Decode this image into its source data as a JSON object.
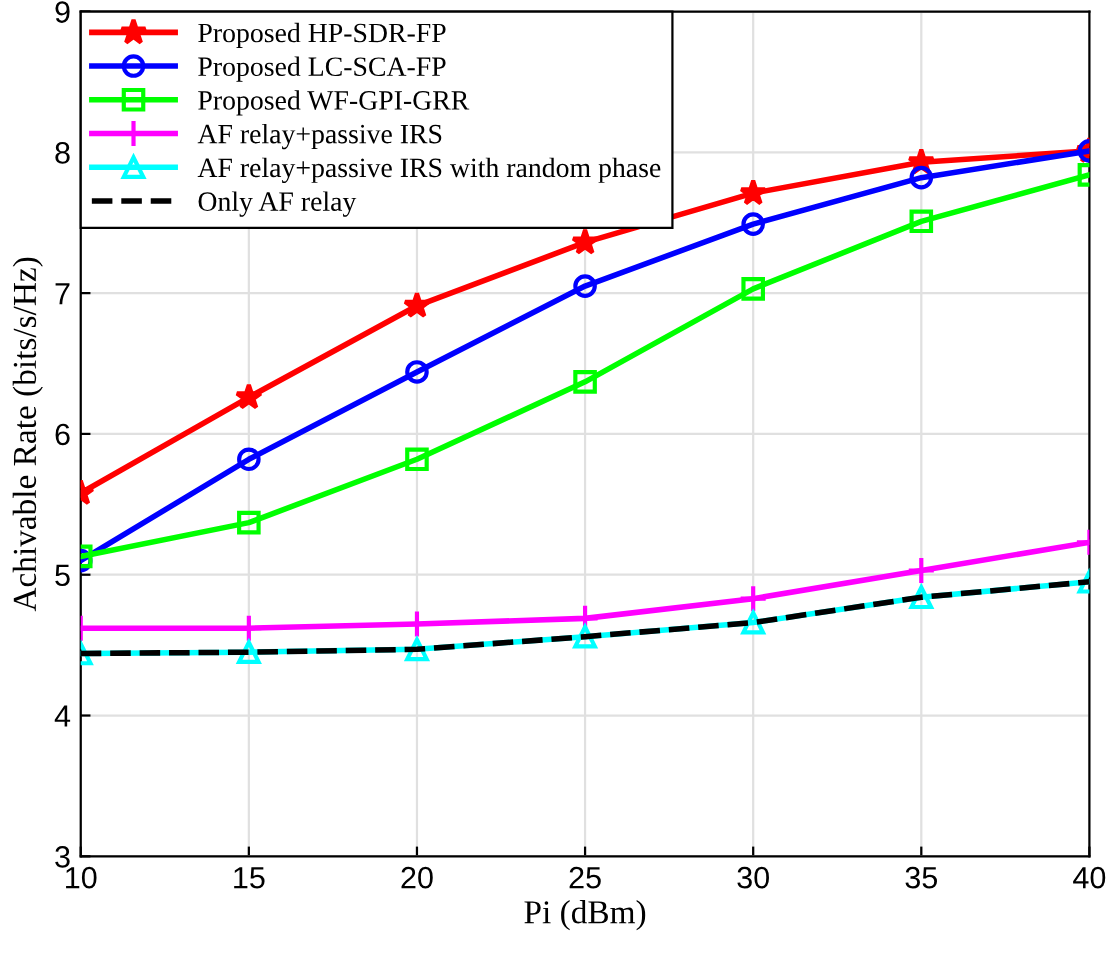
{
  "chart_data": {
    "type": "line",
    "xlabel": "Pi (dBm)",
    "ylabel": "Achivable Rate (bits/s/Hz)",
    "x": [
      10,
      15,
      20,
      25,
      30,
      35,
      40
    ],
    "xlim": [
      10,
      40
    ],
    "ylim": [
      3,
      9
    ],
    "xticks": [
      10,
      15,
      20,
      25,
      30,
      35,
      40
    ],
    "yticks": [
      3,
      4,
      5,
      6,
      7,
      8,
      9
    ],
    "grid": true,
    "legend": "top left",
    "series": [
      {
        "name": "Proposed HP-SDR-FP",
        "color": "#ff0000",
        "marker": "star",
        "line_style": "solid",
        "values": [
          5.58,
          6.26,
          6.91,
          7.36,
          7.71,
          7.93,
          8.01
        ]
      },
      {
        "name": "Proposed LC-SCA-FP",
        "color": "#0000ff",
        "marker": "circle",
        "line_style": "solid",
        "values": [
          5.1,
          5.82,
          6.44,
          7.05,
          7.49,
          7.82,
          8.01
        ]
      },
      {
        "name": "Proposed WF-GPI-GRR",
        "color": "#00ff00",
        "marker": "square",
        "line_style": "solid",
        "values": [
          5.13,
          5.37,
          5.82,
          6.37,
          7.03,
          7.51,
          7.84
        ]
      },
      {
        "name": "AF relay+passive IRS",
        "color": "#ff00ff",
        "marker": "cross",
        "line_style": "solid",
        "values": [
          4.62,
          4.62,
          4.65,
          4.69,
          4.83,
          5.03,
          5.23
        ]
      },
      {
        "name": "AF relay+passive IRS with random phase",
        "color": "#00ffff",
        "marker": "triangle",
        "line_style": "solid",
        "values": [
          4.44,
          4.45,
          4.47,
          4.56,
          4.66,
          4.84,
          4.95
        ]
      },
      {
        "name": "Only AF relay",
        "color": "#000000",
        "marker": "none",
        "line_style": "dashed",
        "values": [
          4.44,
          4.45,
          4.47,
          4.56,
          4.66,
          4.84,
          4.95
        ]
      }
    ]
  }
}
